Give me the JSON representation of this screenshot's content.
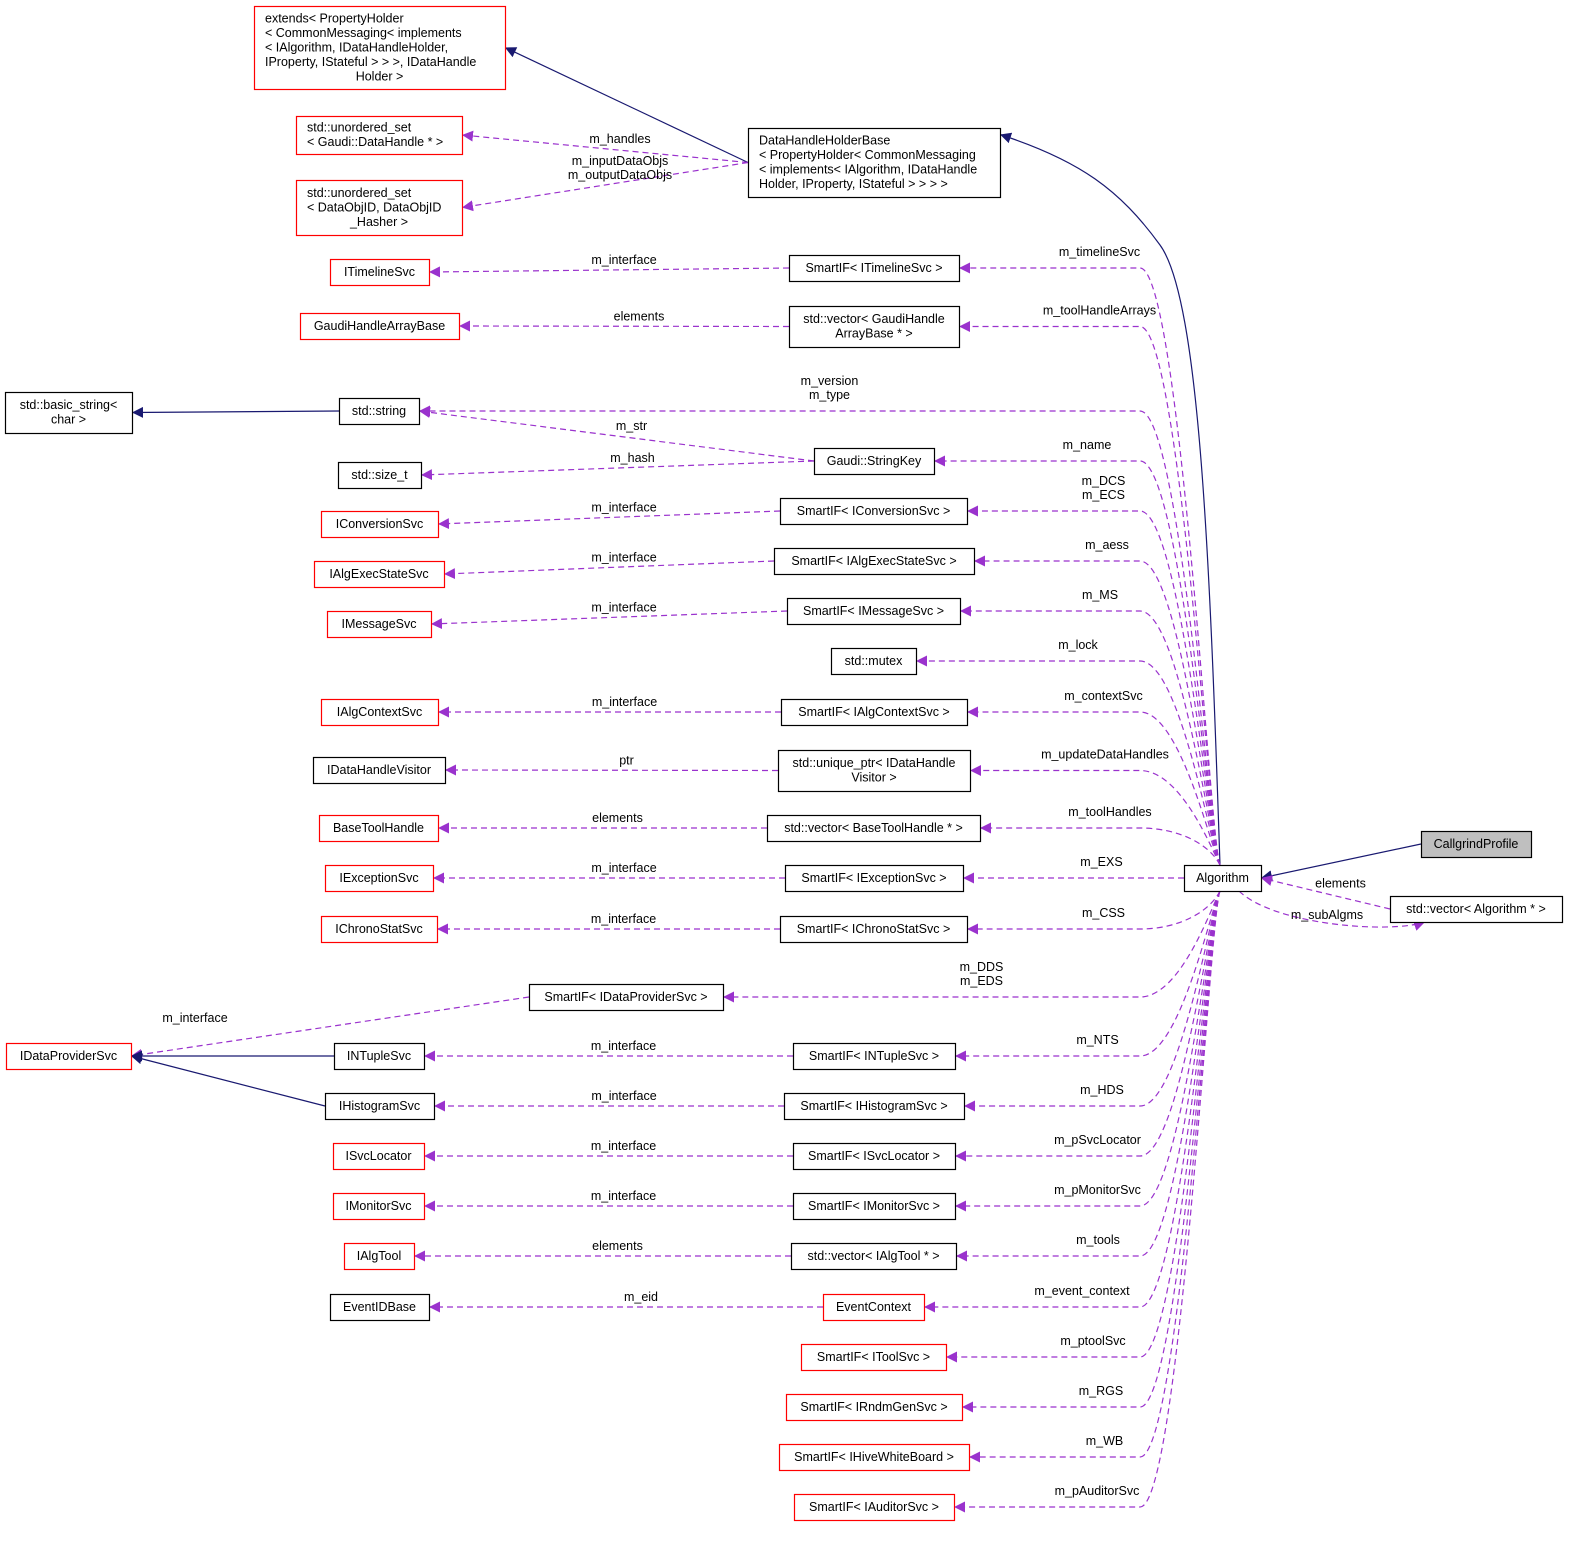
{
  "colors": {
    "inherit_edge": "#191970",
    "use_edge": "#9a32cd",
    "node_border_default": "#000000",
    "node_border_undocumented": "#ff0000",
    "node_fill_focus": "#bfbfbf",
    "node_fill": "#ffffff"
  },
  "nodes": [
    {
      "id": "extends",
      "style": "red",
      "lines": [
        "extends< PropertyHolder",
        "< CommonMessaging< implements",
        "< IAlgorithm, IDataHandleHolder,",
        "IProperty, IStateful > > >, IDataHandle",
        "Holder >"
      ],
      "align": "left"
    },
    {
      "id": "usetHandle",
      "style": "red",
      "lines": [
        "std::unordered_set",
        "< Gaudi::DataHandle * >"
      ],
      "align": "left"
    },
    {
      "id": "usetObj",
      "style": "red",
      "lines": [
        "std::unordered_set",
        "< DataObjID, DataObjID",
        "_Hasher >"
      ],
      "align": "left"
    },
    {
      "id": "dhhb",
      "style": "black",
      "lines": [
        "DataHandleHolderBase",
        "< PropertyHolder< CommonMessaging",
        "< implements< IAlgorithm, IDataHandle",
        "Holder, IProperty, IStateful > > > >"
      ],
      "align": "left"
    },
    {
      "id": "ITimelineSvc",
      "style": "red",
      "lines": [
        "ITimelineSvc"
      ]
    },
    {
      "id": "sTimeline",
      "style": "black",
      "lines": [
        "SmartIF< ITimelineSvc >"
      ]
    },
    {
      "id": "GHAB",
      "style": "red",
      "lines": [
        "GaudiHandleArrayBase"
      ]
    },
    {
      "id": "vGHAB",
      "style": "black",
      "lines": [
        "std::vector< GaudiHandle",
        "ArrayBase * >"
      ]
    },
    {
      "id": "basicString",
      "style": "black",
      "lines": [
        "std::basic_string<",
        "char >"
      ]
    },
    {
      "id": "string",
      "style": "black",
      "lines": [
        "std::string"
      ]
    },
    {
      "id": "sizet",
      "style": "black",
      "lines": [
        "std::size_t"
      ]
    },
    {
      "id": "stringKey",
      "style": "black",
      "lines": [
        "Gaudi::StringKey"
      ]
    },
    {
      "id": "IConversionSvc",
      "style": "red",
      "lines": [
        "IConversionSvc"
      ]
    },
    {
      "id": "sConversion",
      "style": "black",
      "lines": [
        "SmartIF< IConversionSvc >"
      ]
    },
    {
      "id": "IAlgExecStateSvc",
      "style": "red",
      "lines": [
        "IAlgExecStateSvc"
      ]
    },
    {
      "id": "sAlgExec",
      "style": "black",
      "lines": [
        "SmartIF< IAlgExecStateSvc >"
      ]
    },
    {
      "id": "IMessageSvc",
      "style": "red",
      "lines": [
        "IMessageSvc"
      ]
    },
    {
      "id": "sMessage",
      "style": "black",
      "lines": [
        "SmartIF< IMessageSvc >"
      ]
    },
    {
      "id": "mutex",
      "style": "black",
      "lines": [
        "std::mutex"
      ]
    },
    {
      "id": "IAlgContextSvc",
      "style": "red",
      "lines": [
        "IAlgContextSvc"
      ]
    },
    {
      "id": "sAlgContext",
      "style": "black",
      "lines": [
        "SmartIF< IAlgContextSvc >"
      ]
    },
    {
      "id": "IDHV",
      "style": "black",
      "lines": [
        "IDataHandleVisitor"
      ]
    },
    {
      "id": "uDHV",
      "style": "black",
      "lines": [
        "std::unique_ptr< IDataHandle",
        "Visitor >"
      ]
    },
    {
      "id": "BaseToolHandle",
      "style": "red",
      "lines": [
        "BaseToolHandle"
      ]
    },
    {
      "id": "vBTH",
      "style": "black",
      "lines": [
        "std::vector< BaseToolHandle * >"
      ]
    },
    {
      "id": "IExceptionSvc",
      "style": "red",
      "lines": [
        "IExceptionSvc"
      ]
    },
    {
      "id": "sException",
      "style": "black",
      "lines": [
        "SmartIF< IExceptionSvc >"
      ]
    },
    {
      "id": "IChronoStatSvc",
      "style": "red",
      "lines": [
        "IChronoStatSvc"
      ]
    },
    {
      "id": "sChrono",
      "style": "black",
      "lines": [
        "SmartIF< IChronoStatSvc >"
      ]
    },
    {
      "id": "sDataProvider",
      "style": "black",
      "lines": [
        "SmartIF< IDataProviderSvc >"
      ]
    },
    {
      "id": "IDataProviderSvc",
      "style": "red",
      "lines": [
        "IDataProviderSvc"
      ]
    },
    {
      "id": "INTupleSvc",
      "style": "black",
      "lines": [
        "INTupleSvc"
      ]
    },
    {
      "id": "sNTuple",
      "style": "black",
      "lines": [
        "SmartIF< INTupleSvc >"
      ]
    },
    {
      "id": "IHistogramSvc",
      "style": "black",
      "lines": [
        "IHistogramSvc"
      ]
    },
    {
      "id": "sHistogram",
      "style": "black",
      "lines": [
        "SmartIF< IHistogramSvc >"
      ]
    },
    {
      "id": "ISvcLocator",
      "style": "red",
      "lines": [
        "ISvcLocator"
      ]
    },
    {
      "id": "sSvcLocator",
      "style": "black",
      "lines": [
        "SmartIF< ISvcLocator >"
      ]
    },
    {
      "id": "IMonitorSvc",
      "style": "red",
      "lines": [
        "IMonitorSvc"
      ]
    },
    {
      "id": "sMonitor",
      "style": "black",
      "lines": [
        "SmartIF< IMonitorSvc >"
      ]
    },
    {
      "id": "IAlgTool",
      "style": "red",
      "lines": [
        "IAlgTool"
      ]
    },
    {
      "id": "vAlgTool",
      "style": "black",
      "lines": [
        "std::vector< IAlgTool * >"
      ]
    },
    {
      "id": "EventIDBase",
      "style": "black",
      "lines": [
        "EventIDBase"
      ]
    },
    {
      "id": "EventContext",
      "style": "red",
      "lines": [
        "EventContext"
      ]
    },
    {
      "id": "sToolSvc",
      "style": "red",
      "lines": [
        "SmartIF< IToolSvc >"
      ]
    },
    {
      "id": "sRndm",
      "style": "red",
      "lines": [
        "SmartIF< IRndmGenSvc >"
      ]
    },
    {
      "id": "sHive",
      "style": "red",
      "lines": [
        "SmartIF< IHiveWhiteBoard >"
      ]
    },
    {
      "id": "sAuditor",
      "style": "red",
      "lines": [
        "SmartIF< IAuditorSvc >"
      ]
    },
    {
      "id": "Algorithm",
      "style": "black",
      "lines": [
        "Algorithm"
      ]
    },
    {
      "id": "Callgrind",
      "style": "focus",
      "lines": [
        "CallgrindProfile"
      ]
    },
    {
      "id": "vAlgorithm",
      "style": "black",
      "lines": [
        "std::vector< Algorithm * >"
      ]
    }
  ],
  "edges": [
    {
      "from": "dhhb",
      "to": "extends",
      "kind": "inherit",
      "label": []
    },
    {
      "from": "dhhb",
      "to": "usetHandle",
      "kind": "use",
      "label": [
        "m_handles"
      ]
    },
    {
      "from": "dhhb",
      "to": "usetObj",
      "kind": "use",
      "label": [
        "m_inputDataObjs",
        "m_outputDataObjs"
      ]
    },
    {
      "from": "Algorithm",
      "to": "dhhb",
      "kind": "inherit",
      "label": []
    },
    {
      "from": "sTimeline",
      "to": "ITimelineSvc",
      "kind": "use",
      "label": [
        "m_interface"
      ]
    },
    {
      "from": "Algorithm",
      "to": "sTimeline",
      "kind": "use",
      "label": [
        "m_timelineSvc"
      ]
    },
    {
      "from": "vGHAB",
      "to": "GHAB",
      "kind": "use",
      "label": [
        "elements"
      ]
    },
    {
      "from": "Algorithm",
      "to": "vGHAB",
      "kind": "use",
      "label": [
        "m_toolHandleArrays"
      ]
    },
    {
      "from": "string",
      "to": "basicString",
      "kind": "inherit",
      "label": []
    },
    {
      "from": "Algorithm",
      "to": "string",
      "kind": "use",
      "label": [
        "m_version",
        "m_type"
      ]
    },
    {
      "from": "stringKey",
      "to": "string",
      "kind": "use",
      "label": [
        "m_str"
      ]
    },
    {
      "from": "stringKey",
      "to": "sizet",
      "kind": "use",
      "label": [
        "m_hash"
      ]
    },
    {
      "from": "Algorithm",
      "to": "stringKey",
      "kind": "use",
      "label": [
        "m_name"
      ]
    },
    {
      "from": "sConversion",
      "to": "IConversionSvc",
      "kind": "use",
      "label": [
        "m_interface"
      ]
    },
    {
      "from": "Algorithm",
      "to": "sConversion",
      "kind": "use",
      "label": [
        "m_DCS",
        "m_ECS"
      ]
    },
    {
      "from": "sAlgExec",
      "to": "IAlgExecStateSvc",
      "kind": "use",
      "label": [
        "m_interface"
      ]
    },
    {
      "from": "Algorithm",
      "to": "sAlgExec",
      "kind": "use",
      "label": [
        "m_aess"
      ]
    },
    {
      "from": "sMessage",
      "to": "IMessageSvc",
      "kind": "use",
      "label": [
        "m_interface"
      ]
    },
    {
      "from": "Algorithm",
      "to": "sMessage",
      "kind": "use",
      "label": [
        "m_MS"
      ]
    },
    {
      "from": "Algorithm",
      "to": "mutex",
      "kind": "use",
      "label": [
        "m_lock"
      ]
    },
    {
      "from": "sAlgContext",
      "to": "IAlgContextSvc",
      "kind": "use",
      "label": [
        "m_interface"
      ]
    },
    {
      "from": "Algorithm",
      "to": "sAlgContext",
      "kind": "use",
      "label": [
        "m_contextSvc"
      ]
    },
    {
      "from": "uDHV",
      "to": "IDHV",
      "kind": "use",
      "label": [
        "ptr"
      ]
    },
    {
      "from": "Algorithm",
      "to": "uDHV",
      "kind": "use",
      "label": [
        "m_updateDataHandles"
      ]
    },
    {
      "from": "vBTH",
      "to": "BaseToolHandle",
      "kind": "use",
      "label": [
        "elements"
      ]
    },
    {
      "from": "Algorithm",
      "to": "vBTH",
      "kind": "use",
      "label": [
        "m_toolHandles"
      ]
    },
    {
      "from": "sException",
      "to": "IExceptionSvc",
      "kind": "use",
      "label": [
        "m_interface"
      ]
    },
    {
      "from": "Algorithm",
      "to": "sException",
      "kind": "use",
      "label": [
        "m_EXS"
      ]
    },
    {
      "from": "sChrono",
      "to": "IChronoStatSvc",
      "kind": "use",
      "label": [
        "m_interface"
      ]
    },
    {
      "from": "Algorithm",
      "to": "sChrono",
      "kind": "use",
      "label": [
        "m_CSS"
      ]
    },
    {
      "from": "Algorithm",
      "to": "sDataProvider",
      "kind": "use",
      "label": [
        "m_DDS",
        "m_EDS"
      ]
    },
    {
      "from": "sDataProvider",
      "to": "IDataProviderSvc",
      "kind": "use",
      "label": [
        "m_interface"
      ]
    },
    {
      "from": "INTupleSvc",
      "to": "IDataProviderSvc",
      "kind": "inherit",
      "label": []
    },
    {
      "from": "IHistogramSvc",
      "to": "IDataProviderSvc",
      "kind": "inherit",
      "label": []
    },
    {
      "from": "sNTuple",
      "to": "INTupleSvc",
      "kind": "use",
      "label": [
        "m_interface"
      ]
    },
    {
      "from": "Algorithm",
      "to": "sNTuple",
      "kind": "use",
      "label": [
        "m_NTS"
      ]
    },
    {
      "from": "sHistogram",
      "to": "IHistogramSvc",
      "kind": "use",
      "label": [
        "m_interface"
      ]
    },
    {
      "from": "Algorithm",
      "to": "sHistogram",
      "kind": "use",
      "label": [
        "m_HDS"
      ]
    },
    {
      "from": "sSvcLocator",
      "to": "ISvcLocator",
      "kind": "use",
      "label": [
        "m_interface"
      ]
    },
    {
      "from": "Algorithm",
      "to": "sSvcLocator",
      "kind": "use",
      "label": [
        "m_pSvcLocator"
      ]
    },
    {
      "from": "sMonitor",
      "to": "IMonitorSvc",
      "kind": "use",
      "label": [
        "m_interface"
      ]
    },
    {
      "from": "Algorithm",
      "to": "sMonitor",
      "kind": "use",
      "label": [
        "m_pMonitorSvc"
      ]
    },
    {
      "from": "vAlgTool",
      "to": "IAlgTool",
      "kind": "use",
      "label": [
        "elements"
      ]
    },
    {
      "from": "Algorithm",
      "to": "vAlgTool",
      "kind": "use",
      "label": [
        "m_tools"
      ]
    },
    {
      "from": "EventContext",
      "to": "EventIDBase",
      "kind": "use",
      "label": [
        "m_eid"
      ]
    },
    {
      "from": "Algorithm",
      "to": "EventContext",
      "kind": "use",
      "label": [
        "m_event_context"
      ]
    },
    {
      "from": "Algorithm",
      "to": "sToolSvc",
      "kind": "use",
      "label": [
        "m_ptoolSvc"
      ]
    },
    {
      "from": "Algorithm",
      "to": "sRndm",
      "kind": "use",
      "label": [
        "m_RGS"
      ]
    },
    {
      "from": "Algorithm",
      "to": "sHive",
      "kind": "use",
      "label": [
        "m_WB"
      ]
    },
    {
      "from": "Algorithm",
      "to": "sAuditor",
      "kind": "use",
      "label": [
        "m_pAuditorSvc"
      ]
    },
    {
      "from": "Callgrind",
      "to": "Algorithm",
      "kind": "inherit",
      "label": []
    },
    {
      "from": "vAlgorithm",
      "to": "Algorithm",
      "kind": "use",
      "label": [
        "elements"
      ]
    },
    {
      "from": "Algorithm",
      "to": "vAlgorithm",
      "kind": "use",
      "label": [
        "m_subAlgms"
      ]
    }
  ]
}
